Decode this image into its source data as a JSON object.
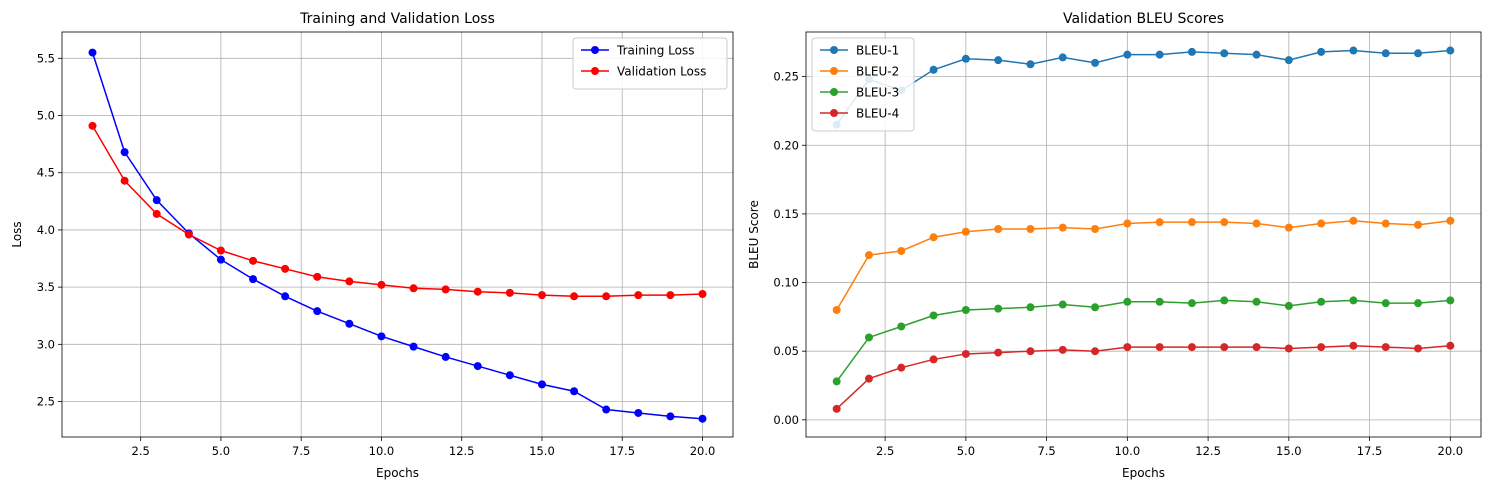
{
  "chart_data": [
    {
      "type": "line",
      "title": "Training and Validation Loss",
      "xlabel": "Epochs",
      "ylabel": "Loss",
      "xlim": [
        0.05,
        20.95
      ],
      "ylim": [
        2.19,
        5.73
      ],
      "xticks": [
        2.5,
        5.0,
        7.5,
        10.0,
        12.5,
        15.0,
        17.5,
        20.0
      ],
      "xtick_labels": [
        "2.5",
        "5.0",
        "7.5",
        "10.0",
        "12.5",
        "15.0",
        "17.5",
        "20.0"
      ],
      "yticks": [
        2.5,
        3.0,
        3.5,
        4.0,
        4.5,
        5.0,
        5.5
      ],
      "ytick_labels": [
        "2.5",
        "3.0",
        "3.5",
        "4.0",
        "4.5",
        "5.0",
        "5.5"
      ],
      "grid": true,
      "legend": "top-right",
      "x": [
        1,
        2,
        3,
        4,
        5,
        6,
        7,
        8,
        9,
        10,
        11,
        12,
        13,
        14,
        15,
        16,
        17,
        18,
        19,
        20
      ],
      "series": [
        {
          "name": "Training Loss",
          "color": "#0000ff",
          "values": [
            5.55,
            4.68,
            4.26,
            3.97,
            3.74,
            3.57,
            3.42,
            3.29,
            3.18,
            3.07,
            2.98,
            2.89,
            2.81,
            2.73,
            2.65,
            2.59,
            2.43,
            2.4,
            2.37,
            2.35
          ]
        },
        {
          "name": "Validation Loss",
          "color": "#ff0000",
          "values": [
            4.91,
            4.43,
            4.14,
            3.96,
            3.82,
            3.73,
            3.66,
            3.59,
            3.55,
            3.52,
            3.49,
            3.48,
            3.46,
            3.45,
            3.43,
            3.42,
            3.42,
            3.43,
            3.43,
            3.44
          ]
        }
      ]
    },
    {
      "type": "line",
      "title": "Validation BLEU Scores",
      "xlabel": "Epochs",
      "ylabel": "BLEU Score",
      "xlim": [
        0.05,
        20.95
      ],
      "ylim": [
        -0.0125,
        0.2825
      ],
      "xticks": [
        2.5,
        5.0,
        7.5,
        10.0,
        12.5,
        15.0,
        17.5,
        20.0
      ],
      "xtick_labels": [
        "2.5",
        "5.0",
        "7.5",
        "10.0",
        "12.5",
        "15.0",
        "17.5",
        "20.0"
      ],
      "yticks": [
        0.0,
        0.05,
        0.1,
        0.15,
        0.2,
        0.25
      ],
      "ytick_labels": [
        "0.00",
        "0.05",
        "0.10",
        "0.15",
        "0.20",
        "0.25"
      ],
      "grid": true,
      "legend": "top-left",
      "x": [
        1,
        2,
        3,
        4,
        5,
        6,
        7,
        8,
        9,
        10,
        11,
        12,
        13,
        14,
        15,
        16,
        17,
        18,
        19,
        20
      ],
      "series": [
        {
          "name": "BLEU-1",
          "color": "#1f77b4",
          "values": [
            0.215,
            0.248,
            0.24,
            0.255,
            0.263,
            0.262,
            0.259,
            0.264,
            0.26,
            0.266,
            0.266,
            0.268,
            0.267,
            0.266,
            0.262,
            0.268,
            0.269,
            0.267,
            0.267,
            0.269
          ]
        },
        {
          "name": "BLEU-2",
          "color": "#ff7f0e",
          "values": [
            0.08,
            0.12,
            0.123,
            0.133,
            0.137,
            0.139,
            0.139,
            0.14,
            0.139,
            0.143,
            0.144,
            0.144,
            0.144,
            0.143,
            0.14,
            0.143,
            0.145,
            0.143,
            0.142,
            0.145
          ]
        },
        {
          "name": "BLEU-3",
          "color": "#2ca02c",
          "values": [
            0.028,
            0.06,
            0.068,
            0.076,
            0.08,
            0.081,
            0.082,
            0.084,
            0.082,
            0.086,
            0.086,
            0.085,
            0.087,
            0.086,
            0.083,
            0.086,
            0.087,
            0.085,
            0.085,
            0.087
          ]
        },
        {
          "name": "BLEU-4",
          "color": "#d62728",
          "values": [
            0.008,
            0.03,
            0.038,
            0.044,
            0.048,
            0.049,
            0.05,
            0.051,
            0.05,
            0.053,
            0.053,
            0.053,
            0.053,
            0.053,
            0.052,
            0.053,
            0.054,
            0.053,
            0.052,
            0.054
          ]
        }
      ]
    }
  ]
}
